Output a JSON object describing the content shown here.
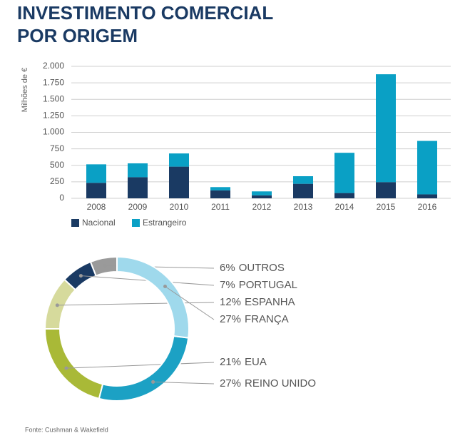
{
  "title": [
    "INVESTIMENTO COMERCIAL",
    "POR ORIGEM"
  ],
  "source": "Fonte: Cushman & Wakefield",
  "chart_data": [
    {
      "type": "stacked-bar",
      "ylabel": "Milhões de €",
      "categories": [
        "2008",
        "2009",
        "2010",
        "2011",
        "2012",
        "2013",
        "2014",
        "2015",
        "2016"
      ],
      "series": [
        {
          "name": "Nacional",
          "color": "#1a3a63",
          "values": [
            235,
            320,
            480,
            120,
            45,
            220,
            80,
            245,
            60
          ]
        },
        {
          "name": "Estrangeiro",
          "color": "#0aa0c5",
          "values": [
            280,
            210,
            200,
            50,
            60,
            115,
            610,
            1635,
            810
          ]
        }
      ],
      "ylim": [
        0,
        2000
      ],
      "yticks": [
        0,
        250,
        500,
        750,
        {
          "value": 1000,
          "label": "1.000"
        },
        {
          "value": 1250,
          "label": "1.250"
        },
        {
          "value": 1500,
          "label": "1.500"
        },
        {
          "value": 1750,
          "label": "1.750"
        },
        {
          "value": 2000,
          "label": "2.000"
        }
      ],
      "grid": true,
      "legend": "bottom-left"
    },
    {
      "type": "donut",
      "categories": [
        "OUTROS",
        "PORTUGAL",
        "ESPANHA",
        "EUA",
        "REINO UNIDO",
        "FRANÇA"
      ],
      "values": [
        6,
        7,
        12,
        21,
        27,
        27
      ],
      "value_labels": [
        "6%",
        "7%",
        "12%",
        "21%",
        "27%",
        "27%"
      ],
      "colors": [
        "#9a9a9a",
        "#1a3a63",
        "#d6da9c",
        "#a9b937",
        "#1ca1c4",
        "#9fd9ec"
      ]
    }
  ]
}
